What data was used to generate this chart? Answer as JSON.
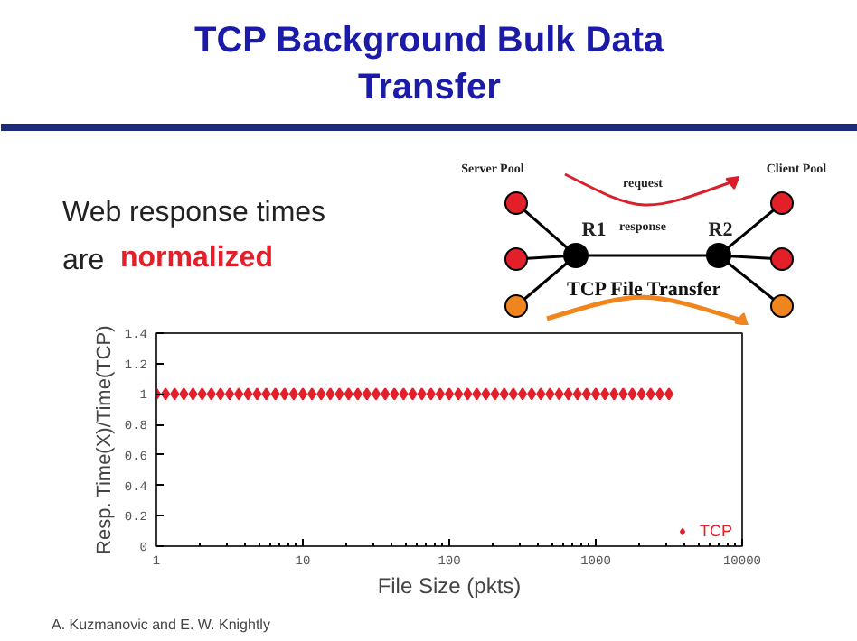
{
  "chart_data": {
    "type": "scatter",
    "title": "TCP Background Bulk Data Transfer",
    "xlabel": "File Size (pkts)",
    "ylabel": "Resp. Time(X)/Time(TCP)",
    "annotations": [
      "Web response times\nare",
      "normalized",
      "Server Pool",
      "Client Pool",
      "request",
      "response",
      "R1",
      "R2",
      "TCP File Transfer",
      "A. Kuzmanovic and E. W. Knightly"
    ],
    "log": "x",
    "xlim": [
      1,
      10000
    ],
    "xticks": [
      1,
      10,
      100,
      1000,
      10000
    ],
    "ylim": [
      0,
      1.4
    ],
    "yticks": [
      0,
      0.2,
      0.4,
      0.6,
      0.8,
      1,
      1.2,
      1.4
    ],
    "grid": false,
    "legend": "bottom right",
    "marker": "diamond",
    "series": [
      {
        "name": "TCP",
        "color": "#e3202a",
        "x": [
          1,
          1.155,
          1.334,
          1.54,
          1.778,
          2.054,
          2.371,
          2.738,
          3.162,
          3.652,
          4.217,
          4.87,
          5.623,
          6.494,
          7.499,
          8.66,
          10,
          11.55,
          13.34,
          15.4,
          17.78,
          20.54,
          23.71,
          27.38,
          31.62,
          36.52,
          42.17,
          48.7,
          56.23,
          64.94,
          74.99,
          86.6,
          100,
          115.5,
          133.4,
          154,
          177.8,
          205.4,
          237.1,
          273.8,
          316.2,
          365.2,
          421.7,
          487,
          562.3,
          649.4,
          749.9,
          866,
          1000,
          1155,
          1334,
          1540,
          1778,
          2054,
          2371,
          2738,
          3162
        ],
        "values": [
          1,
          1,
          1,
          1,
          1,
          1,
          1,
          1,
          1,
          1,
          1,
          1,
          1,
          1,
          1,
          1,
          1,
          1,
          1,
          1,
          1,
          1,
          1,
          1,
          1,
          1,
          1,
          1,
          1,
          1,
          1,
          1,
          1,
          1,
          1,
          1,
          1,
          1,
          1,
          1,
          1,
          1,
          1,
          1,
          1,
          1,
          1,
          1,
          1,
          1,
          1,
          1,
          1,
          1,
          1,
          1,
          1
        ]
      }
    ]
  }
}
